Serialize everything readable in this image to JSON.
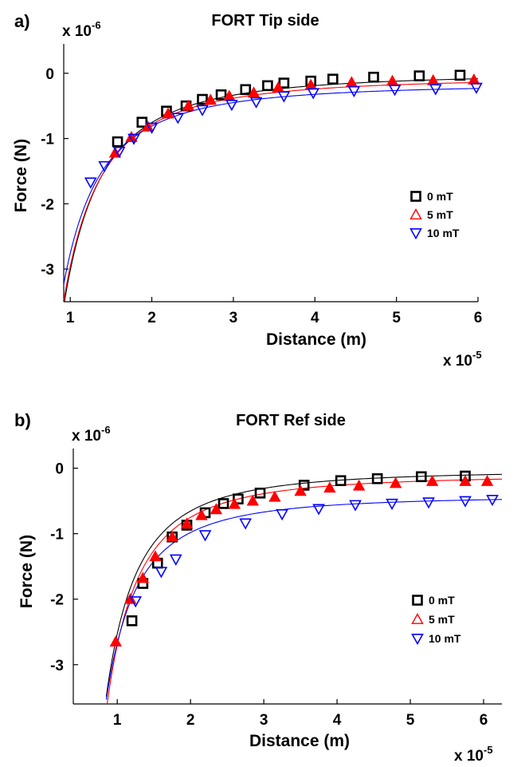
{
  "chart_data": [
    {
      "type": "scatter",
      "panel_label": "a)",
      "title": "FORT Tip side",
      "xlabel": "Distance (m)",
      "ylabel": "Force (N)",
      "x_multiplier": "x 10",
      "x_multiplier_exp": "-5",
      "y_multiplier": "x 10",
      "y_multiplier_exp": "-6",
      "xlim": [
        0.92,
        6.0
      ],
      "ylim": [
        -3.5,
        0.45
      ],
      "xticks": [
        "1",
        "2",
        "3",
        "4",
        "5",
        "6"
      ],
      "xtick_values": [
        1,
        2,
        3,
        4,
        5,
        6
      ],
      "yticks": [
        "0",
        "-1",
        "-2",
        "-3"
      ],
      "ytick_values": [
        0,
        -1,
        -2,
        -3
      ],
      "legend_position": "right-middle",
      "series": [
        {
          "name": "0 mT",
          "color": "#000000",
          "marker": "square",
          "x": [
            1.58,
            1.88,
            2.18,
            2.42,
            2.62,
            2.85,
            3.15,
            3.42,
            3.62,
            3.95,
            4.22,
            4.72,
            5.28,
            5.78
          ],
          "y": [
            -1.05,
            -0.75,
            -0.58,
            -0.5,
            -0.4,
            -0.33,
            -0.25,
            -0.19,
            -0.15,
            -0.12,
            -0.09,
            -0.06,
            -0.04,
            -0.03
          ],
          "fit": {
            "a": -3.02e-06,
            "b": 0.0
          }
        },
        {
          "name": "5 mT",
          "color": "#ff0000",
          "marker": "triangle-up",
          "x": [
            1.55,
            1.75,
            1.95,
            2.2,
            2.45,
            2.72,
            2.95,
            3.25,
            3.55,
            3.95,
            4.45,
            4.95,
            5.45,
            5.95
          ],
          "y": [
            -1.22,
            -0.98,
            -0.82,
            -0.62,
            -0.5,
            -0.41,
            -0.35,
            -0.3,
            -0.22,
            -0.18,
            -0.14,
            -0.12,
            -0.11,
            -0.1
          ],
          "fit": {
            "a": -2.9e-06,
            "b": -0.06
          }
        },
        {
          "name": "10 mT",
          "color": "#0000ff",
          "marker": "triangle-down",
          "x": [
            1.25,
            1.42,
            1.6,
            1.78,
            2.0,
            2.32,
            2.62,
            2.98,
            3.28,
            3.62,
            3.98,
            4.48,
            4.98,
            5.48,
            5.98
          ],
          "y": [
            -1.67,
            -1.42,
            -1.2,
            -1.0,
            -0.83,
            -0.68,
            -0.56,
            -0.48,
            -0.44,
            -0.35,
            -0.3,
            -0.27,
            -0.25,
            -0.24,
            -0.22
          ],
          "fit": {
            "a": -2.6e-06,
            "b": -0.16
          }
        }
      ]
    },
    {
      "type": "scatter",
      "panel_label": "b)",
      "title": "FORT Ref side",
      "xlabel": "Distance (m)",
      "ylabel": "Force (N)",
      "x_multiplier": "x 10",
      "x_multiplier_exp": "-5",
      "y_multiplier": "x 10",
      "y_multiplier_exp": "-6",
      "xlim": [
        0.4,
        6.25
      ],
      "ylim": [
        -3.6,
        0.3
      ],
      "xticks": [
        "1",
        "2",
        "3",
        "4",
        "5",
        "6"
      ],
      "xtick_values": [
        1,
        2,
        3,
        4,
        5,
        6
      ],
      "yticks": [
        "0",
        "-1",
        "-2",
        "-3"
      ],
      "ytick_values": [
        0,
        -1,
        -2,
        -3
      ],
      "legend_position": "right-middle",
      "series": [
        {
          "name": "0 mT",
          "color": "#000000",
          "marker": "square",
          "x": [
            1.2,
            1.35,
            1.55,
            1.75,
            1.95,
            2.2,
            2.45,
            2.65,
            2.95,
            3.55,
            4.05,
            4.55,
            5.15,
            5.75
          ],
          "y": [
            -2.33,
            -1.76,
            -1.45,
            -1.05,
            -0.87,
            -0.68,
            -0.54,
            -0.47,
            -0.38,
            -0.26,
            -0.19,
            -0.16,
            -0.13,
            -0.12
          ],
          "fit": {
            "a": -2.5e-06,
            "b": -0.03
          }
        },
        {
          "name": "5 mT",
          "color": "#ff0000",
          "marker": "triangle-up",
          "x": [
            0.98,
            1.18,
            1.35,
            1.52,
            1.75,
            1.95,
            2.15,
            2.35,
            2.6,
            2.85,
            3.15,
            3.5,
            3.9,
            4.3,
            4.8,
            5.3,
            5.75,
            6.05
          ],
          "y": [
            -2.65,
            -2.0,
            -1.68,
            -1.35,
            -1.05,
            -0.85,
            -0.72,
            -0.63,
            -0.55,
            -0.5,
            -0.44,
            -0.35,
            -0.3,
            -0.27,
            -0.23,
            -0.2,
            -0.2,
            -0.2
          ],
          "fit": {
            "a": -2.6e-06,
            "b": -0.1
          }
        },
        {
          "name": "10 mT",
          "color": "#0000ff",
          "marker": "triangle-down",
          "x": [
            1.25,
            1.6,
            1.8,
            2.2,
            2.75,
            3.25,
            3.75,
            4.25,
            4.75,
            5.25,
            5.75,
            6.12
          ],
          "y": [
            -2.03,
            -1.58,
            -1.39,
            -1.02,
            -0.84,
            -0.7,
            -0.62,
            -0.56,
            -0.54,
            -0.52,
            -0.5,
            -0.48
          ],
          "fit": {
            "a": -2.25e-06,
            "b": -0.42
          }
        }
      ]
    }
  ]
}
